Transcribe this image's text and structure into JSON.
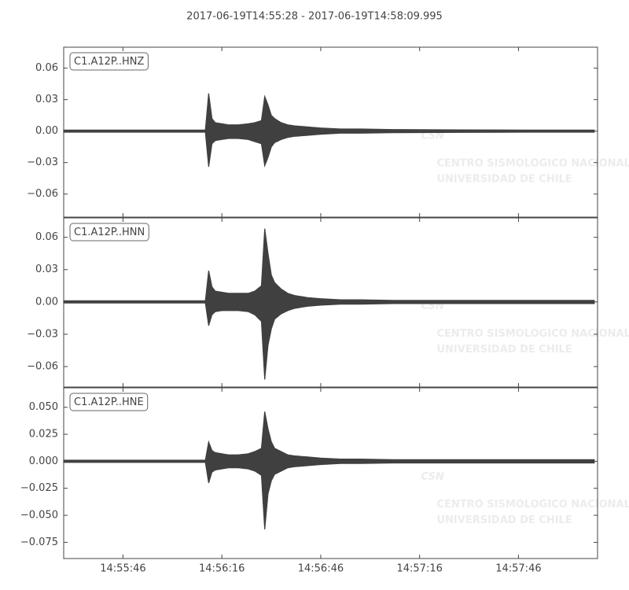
{
  "title": "2017-06-19T14:55:28  -  2017-06-19T14:58:09.995",
  "watermark": {
    "logo": "CSN",
    "lines": [
      "CENTRO SISMOLOGICO NACIONAL",
      "UNIVERSIDAD DE CHILE"
    ]
  },
  "chart_data": [
    {
      "type": "area",
      "label": "C1.A12P..HNZ",
      "xlim": [
        "14:55:28",
        "14:58:09.995"
      ],
      "ylim": [
        -0.082,
        0.08
      ],
      "yticks": [
        {
          "value": 0.06,
          "label": "0.06"
        },
        {
          "value": 0.03,
          "label": "0.03"
        },
        {
          "value": 0,
          "label": "0.00"
        },
        {
          "value": -0.03,
          "label": "−0.03"
        },
        {
          "value": -0.06,
          "label": "−0.06"
        }
      ],
      "x": [
        "14:55:28",
        "14:56:08",
        "14:56:11",
        "14:56:12",
        "14:56:13",
        "14:56:14",
        "14:56:16",
        "14:56:18",
        "14:56:21",
        "14:56:24",
        "14:56:26",
        "14:56:28",
        "14:56:29",
        "14:56:30",
        "14:56:31",
        "14:56:32",
        "14:56:34",
        "14:56:36",
        "14:56:38",
        "14:56:42",
        "14:56:46",
        "14:56:52",
        "14:56:58",
        "14:57:08",
        "14:57:28",
        "14:57:48",
        "14:58:09"
      ],
      "series": [
        {
          "color": "#404040",
          "values": [
            0.001,
            0.001,
            0.001,
            0.036,
            0.012,
            0.008,
            0.007,
            0.006,
            0.006,
            0.007,
            0.008,
            0.01,
            0.033,
            0.025,
            0.015,
            0.012,
            0.008,
            0.006,
            0.005,
            0.004,
            0.003,
            0.002,
            0.002,
            0.0015,
            0.0012,
            0.001,
            0.001
          ]
        },
        {
          "color": "#404040",
          "values": [
            -0.001,
            -0.001,
            -0.001,
            -0.034,
            -0.012,
            -0.009,
            -0.008,
            -0.007,
            -0.007,
            -0.008,
            -0.01,
            -0.012,
            -0.033,
            -0.025,
            -0.015,
            -0.011,
            -0.008,
            -0.006,
            -0.005,
            -0.004,
            -0.003,
            -0.002,
            -0.002,
            -0.0015,
            -0.0012,
            -0.001,
            -0.001
          ]
        }
      ]
    },
    {
      "type": "area",
      "label": "C1.A12P..HNN",
      "xlim": [
        "14:55:28",
        "14:58:09.995"
      ],
      "ylim": [
        -0.079,
        0.078
      ],
      "yticks": [
        {
          "value": 0.06,
          "label": "0.06"
        },
        {
          "value": 0.03,
          "label": "0.03"
        },
        {
          "value": 0,
          "label": "0.00"
        },
        {
          "value": -0.03,
          "label": "−0.03"
        },
        {
          "value": -0.06,
          "label": "−0.06"
        }
      ],
      "x": [
        "14:55:28",
        "14:56:08",
        "14:56:11",
        "14:56:12",
        "14:56:13",
        "14:56:14",
        "14:56:16",
        "14:56:18",
        "14:56:21",
        "14:56:24",
        "14:56:26",
        "14:56:28",
        "14:56:29",
        "14:56:30",
        "14:56:31",
        "14:56:32",
        "14:56:34",
        "14:56:36",
        "14:56:38",
        "14:56:42",
        "14:56:46",
        "14:56:52",
        "14:56:58",
        "14:57:08",
        "14:57:28",
        "14:57:48",
        "14:58:09"
      ],
      "series": [
        {
          "color": "#404040",
          "values": [
            0.001,
            0.001,
            0.001,
            0.029,
            0.014,
            0.01,
            0.009,
            0.008,
            0.008,
            0.008,
            0.01,
            0.015,
            0.068,
            0.045,
            0.025,
            0.018,
            0.012,
            0.008,
            0.006,
            0.004,
            0.003,
            0.002,
            0.002,
            0.0015,
            0.0015,
            0.0015,
            0.0015
          ]
        },
        {
          "color": "#404040",
          "values": [
            -0.001,
            -0.001,
            -0.001,
            -0.022,
            -0.012,
            -0.009,
            -0.008,
            -0.008,
            -0.008,
            -0.009,
            -0.012,
            -0.018,
            -0.072,
            -0.04,
            -0.025,
            -0.016,
            -0.011,
            -0.008,
            -0.006,
            -0.004,
            -0.003,
            -0.002,
            -0.002,
            -0.0015,
            -0.0015,
            -0.0015,
            -0.0015
          ]
        }
      ]
    },
    {
      "type": "area",
      "label": "C1.A12P..HNE",
      "xlim": [
        "14:55:28",
        "14:58:09.995"
      ],
      "ylim": [
        -0.09,
        0.068
      ],
      "yticks": [
        {
          "value": 0.05,
          "label": "0.050"
        },
        {
          "value": 0.025,
          "label": "0.025"
        },
        {
          "value": 0,
          "label": "0.000"
        },
        {
          "value": -0.025,
          "label": "−0.025"
        },
        {
          "value": -0.05,
          "label": "−0.050"
        },
        {
          "value": -0.075,
          "label": "−0.075"
        }
      ],
      "xticks": [
        "14:55:46",
        "14:56:16",
        "14:56:46",
        "14:57:16",
        "14:57:46"
      ],
      "x": [
        "14:55:28",
        "14:56:08",
        "14:56:11",
        "14:56:12",
        "14:56:13",
        "14:56:14",
        "14:56:16",
        "14:56:18",
        "14:56:21",
        "14:56:24",
        "14:56:26",
        "14:56:28",
        "14:56:29",
        "14:56:30",
        "14:56:31",
        "14:56:32",
        "14:56:34",
        "14:56:36",
        "14:56:38",
        "14:56:42",
        "14:56:46",
        "14:56:52",
        "14:56:58",
        "14:57:08",
        "14:57:28",
        "14:57:48",
        "14:58:09"
      ],
      "series": [
        {
          "color": "#404040",
          "values": [
            0.001,
            0.001,
            0.001,
            0.018,
            0.01,
            0.008,
            0.007,
            0.006,
            0.006,
            0.007,
            0.009,
            0.012,
            0.046,
            0.03,
            0.018,
            0.012,
            0.009,
            0.006,
            0.005,
            0.004,
            0.003,
            0.002,
            0.002,
            0.0015,
            0.0015,
            0.0015,
            0.0015
          ]
        },
        {
          "color": "#404040",
          "values": [
            -0.001,
            -0.001,
            -0.001,
            -0.02,
            -0.01,
            -0.008,
            -0.007,
            -0.006,
            -0.006,
            -0.007,
            -0.009,
            -0.013,
            -0.063,
            -0.03,
            -0.018,
            -0.012,
            -0.009,
            -0.006,
            -0.005,
            -0.004,
            -0.003,
            -0.002,
            -0.002,
            -0.0015,
            -0.0015,
            -0.0015,
            -0.0015
          ]
        }
      ]
    }
  ]
}
